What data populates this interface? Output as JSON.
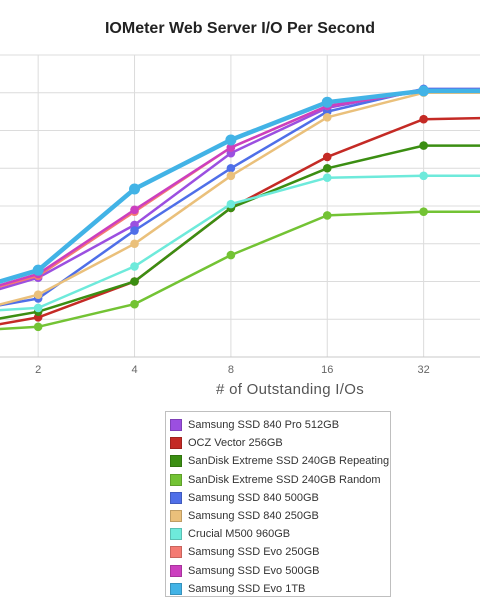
{
  "chart_data": {
    "type": "line",
    "title": "IOMeter Web Server I/O Per Second",
    "xlabel": "# of Outstanding I/Os",
    "ylabel": "",
    "x": [
      1,
      2,
      4,
      8,
      16,
      32,
      64
    ],
    "x_tick_labels": [
      "2",
      "4",
      "8",
      "16",
      "32"
    ],
    "x_scale": "log2",
    "xlim": [
      1.52,
      48
    ],
    "ylim": [
      0,
      8
    ],
    "y_tick_values": [
      1,
      2,
      3,
      4,
      5,
      6,
      7,
      8
    ],
    "y_tick_labels_visible": false,
    "grid": true,
    "legend_position": "bottom",
    "series": [
      {
        "name": "Samsung SSD 840 Pro 512GB",
        "color": "#9b4fe0",
        "values": [
          1.35,
          2.1,
          3.5,
          5.4,
          6.6,
          7.1,
          7.1
        ]
      },
      {
        "name": "OCZ Vector 256GB",
        "color": "#c42a25",
        "values": [
          0.6,
          1.05,
          2.0,
          3.95,
          5.3,
          6.3,
          6.35
        ]
      },
      {
        "name": "SanDisk Extreme SSD 240GB Repeating",
        "color": "#3b8e12",
        "values": [
          0.75,
          1.2,
          2.0,
          3.95,
          5.0,
          5.6,
          5.6
        ]
      },
      {
        "name": "SanDisk Extreme SSD 240GB Random",
        "color": "#73c334",
        "values": [
          0.65,
          0.8,
          1.4,
          2.7,
          3.75,
          3.85,
          3.85
        ]
      },
      {
        "name": "Samsung SSD 840 500GB",
        "color": "#4f6fe8",
        "values": [
          1.1,
          1.55,
          3.35,
          5.0,
          6.5,
          7.1,
          7.1
        ]
      },
      {
        "name": "Samsung SSD 840 250GB",
        "color": "#eac07b",
        "values": [
          1.0,
          1.65,
          3.0,
          4.8,
          6.35,
          7.0,
          7.0
        ]
      },
      {
        "name": "Crucial M500 960GB",
        "color": "#6eeadb",
        "values": [
          1.15,
          1.3,
          2.4,
          4.05,
          4.75,
          4.8,
          4.8
        ]
      },
      {
        "name": "Samsung SSD Evo 250GB",
        "color": "#f47a72",
        "values": [
          1.45,
          2.15,
          3.85,
          5.55,
          6.65,
          7.05,
          7.05
        ]
      },
      {
        "name": "Samsung SSD Evo 500GB",
        "color": "#cc3fbf",
        "values": [
          1.45,
          2.2,
          3.9,
          5.55,
          6.65,
          7.05,
          7.1
        ]
      },
      {
        "name": "Samsung SSD Evo 1TB",
        "color": "#42b3e6",
        "values": [
          1.55,
          2.3,
          4.45,
          5.75,
          6.75,
          7.05,
          7.05
        ]
      }
    ]
  }
}
